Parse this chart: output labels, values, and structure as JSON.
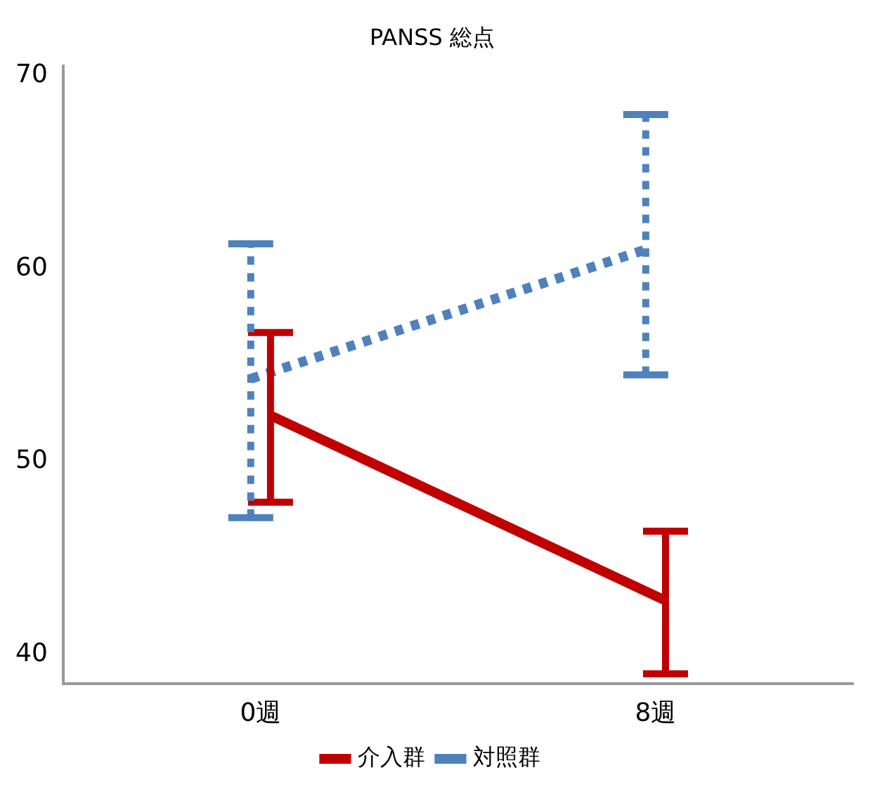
{
  "chart_data": {
    "type": "line",
    "title": "PANSS 総点",
    "categories": [
      "0週",
      "8週"
    ],
    "series": [
      {
        "name": "介入群",
        "color": "#c00000",
        "values": [
          52.4,
          42.8
        ],
        "errors": [
          [
            47.9,
            56.7
          ],
          [
            39.0,
            46.4
          ]
        ],
        "line_style": "solid"
      },
      {
        "name": "対照群",
        "color": "#4f81bd",
        "values": [
          54.3,
          61.0
        ],
        "errors": [
          [
            47.1,
            61.3
          ],
          [
            54.5,
            68.0
          ]
        ],
        "line_style": "dotted"
      }
    ],
    "ylim": [
      38.5,
      70.5
    ],
    "yticks": [
      40,
      50,
      60,
      70
    ],
    "grid": false,
    "legend": "bottom",
    "marker": "none"
  }
}
